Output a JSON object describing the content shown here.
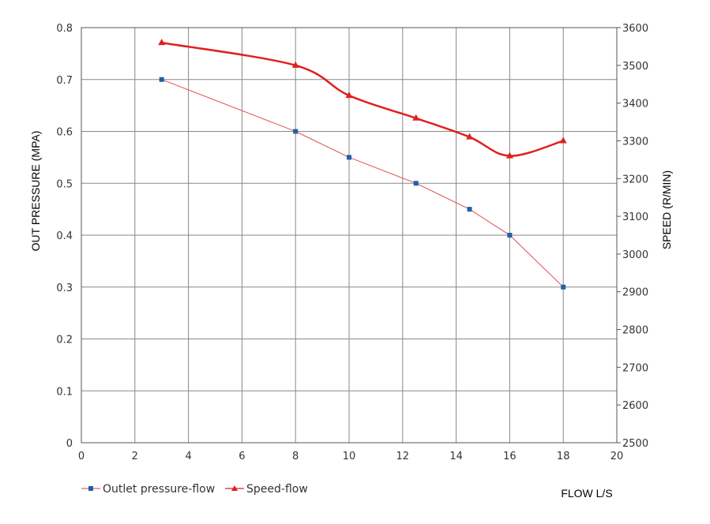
{
  "chart_data": {
    "type": "line",
    "title": "",
    "xlabel": "FLOW L/S",
    "ylabel_left": "OUT PRESSURE (MPA)",
    "ylabel_right": "SPEED (R/MIN)",
    "xlim": [
      0,
      20
    ],
    "ylim_left": [
      0,
      0.8
    ],
    "ylim_right": [
      2500,
      3600
    ],
    "grid": true,
    "legend_position": "bottom-left",
    "x_ticks": [
      "0",
      "2",
      "4",
      "6",
      "8",
      "10",
      "12",
      "14",
      "16",
      "18",
      "20"
    ],
    "y_left_ticks": [
      "0",
      "0.1",
      "0.2",
      "0.3",
      "0.4",
      "0.5",
      "0.6",
      "0.7",
      "0.8"
    ],
    "y_right_ticks": [
      "2500",
      "2600",
      "2700",
      "2800",
      "2900",
      "3000",
      "3100",
      "3200",
      "3300",
      "3400",
      "3500",
      "3600"
    ],
    "series": [
      {
        "name": "Outlet pressure-flow",
        "axis": "left",
        "marker": "square",
        "color": "#e06666",
        "marker_color": "#1f5fa8",
        "x": [
          3,
          8,
          10,
          12.5,
          14.5,
          16,
          18
        ],
        "y": [
          0.7,
          0.6,
          0.55,
          0.5,
          0.45,
          0.4,
          0.3
        ]
      },
      {
        "name": "Speed-flow",
        "axis": "right",
        "marker": "triangle",
        "color": "#e02020",
        "marker_color": "#e02020",
        "x": [
          3,
          8,
          10,
          12.5,
          14.5,
          16,
          18
        ],
        "y": [
          3560,
          3500,
          3420,
          3360,
          3310,
          3260,
          3300
        ]
      }
    ]
  }
}
